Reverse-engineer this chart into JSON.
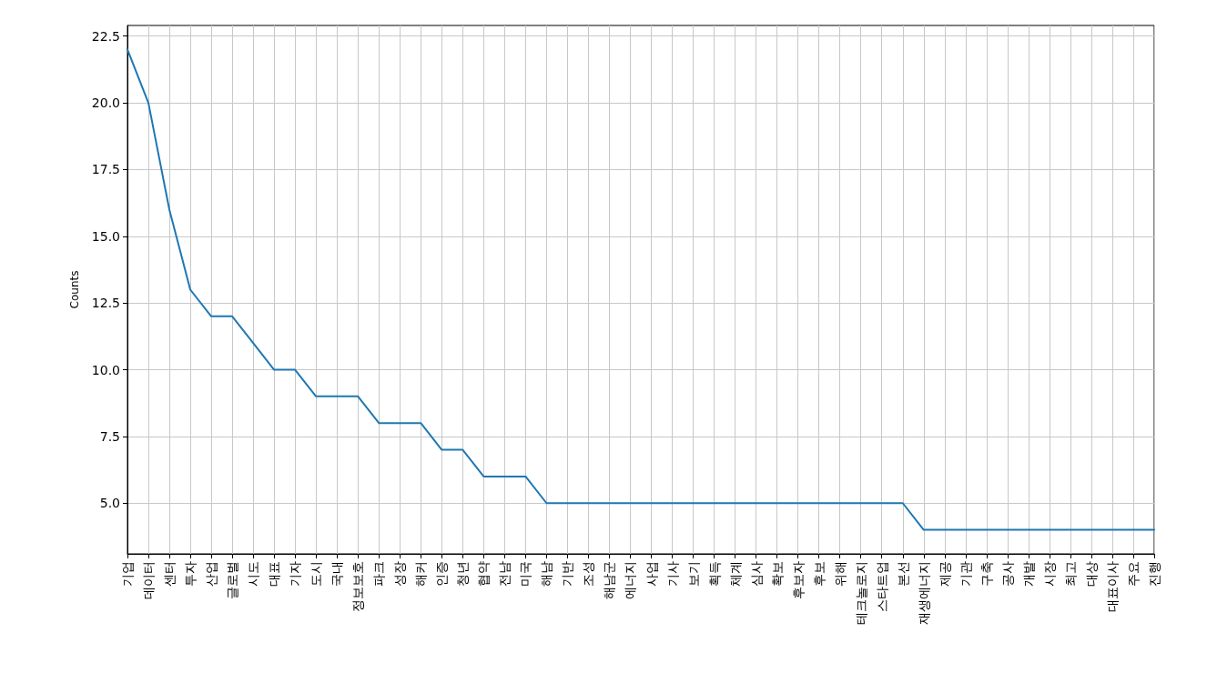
{
  "chart_data": {
    "type": "line",
    "ylabel": "Counts",
    "categories": [
      "기업",
      "데이터",
      "센터",
      "투자",
      "산업",
      "글로벌",
      "시도",
      "대표",
      "기자",
      "도시",
      "국내",
      "정보보호",
      "파크",
      "성장",
      "해커",
      "인증",
      "청년",
      "협약",
      "전남",
      "미국",
      "해남",
      "기반",
      "조성",
      "해남군",
      "에너지",
      "사업",
      "기사",
      "보기",
      "획득",
      "체계",
      "심사",
      "확보",
      "후보자",
      "후보",
      "위해",
      "테크놀로지",
      "스타트업",
      "본선",
      "재생에너지",
      "제공",
      "기관",
      "구축",
      "공사",
      "개발",
      "시장",
      "최고",
      "대상",
      "대표이사",
      "주요",
      "진행"
    ],
    "series": [
      {
        "color": "#1f77b4",
        "values": [
          22,
          20,
          16,
          13,
          12,
          12,
          11,
          10,
          10,
          9,
          9,
          9,
          8,
          8,
          8,
          7,
          7,
          6,
          6,
          6,
          5,
          5,
          5,
          5,
          5,
          5,
          5,
          5,
          5,
          5,
          5,
          5,
          5,
          5,
          5,
          5,
          5,
          5,
          4,
          4,
          4,
          4,
          4,
          4,
          4,
          4,
          4,
          4,
          4,
          4
        ]
      }
    ],
    "ylim": [
      3.1,
      22.9
    ],
    "yticks": [
      {
        "value": 5,
        "label": "5.0"
      },
      {
        "value": 7.5,
        "label": "7.5"
      },
      {
        "value": 10,
        "label": "10.0"
      },
      {
        "value": 12.5,
        "label": "12.5"
      },
      {
        "value": 15,
        "label": "15.0"
      },
      {
        "value": 17.5,
        "label": "17.5"
      },
      {
        "value": 20,
        "label": "20.0"
      },
      {
        "value": 22.5,
        "label": "22.5"
      }
    ],
    "grid": true,
    "marker": "none",
    "line_style": "solid"
  }
}
